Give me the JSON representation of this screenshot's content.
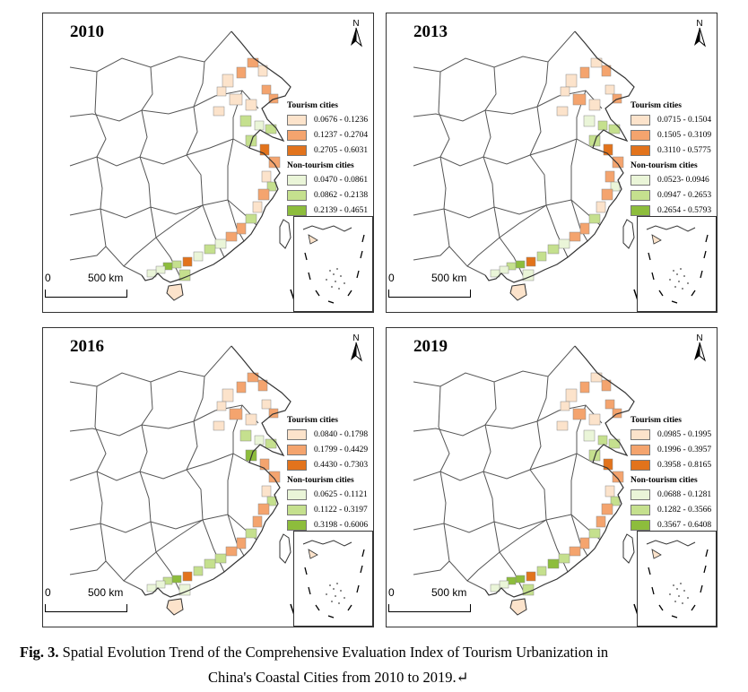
{
  "colors": {
    "tourism": [
      "#fce3cb",
      "#f4a46e",
      "#e2731c"
    ],
    "non_tourism": [
      "#eaf5d8",
      "#c5e08e",
      "#8dbd3c"
    ]
  },
  "panels": [
    {
      "year": "2010",
      "legend": {
        "tourism_title": "Tourism cities",
        "tourism_ranges": [
          "0.0676 - 0.1236",
          "0.1237 - 0.2704",
          "0.2705 - 0.6031"
        ],
        "non_tourism_title": "Non-tourism cities",
        "non_tourism_ranges": [
          "0.0470 - 0.0861",
          "0.0862 - 0.2138",
          "0.2139 - 0.4651"
        ]
      },
      "scale": {
        "zero": "0",
        "distance": "500 km"
      },
      "north": "N"
    },
    {
      "year": "2013",
      "legend": {
        "tourism_title": "Tourism cities",
        "tourism_ranges": [
          "0.0715 - 0.1504",
          "0.1505 - 0.3109",
          "0.3110 - 0.5775"
        ],
        "non_tourism_title": "Non-tourism cities",
        "non_tourism_ranges": [
          "0.0523- 0.0946",
          "0.0947 - 0.2653",
          "0.2654 - 0.5793"
        ]
      },
      "scale": {
        "zero": "0",
        "distance": "500 km"
      },
      "north": "N"
    },
    {
      "year": "2016",
      "legend": {
        "tourism_title": "Tourism cities",
        "tourism_ranges": [
          "0.0840 - 0.1798",
          "0.1799 - 0.4429",
          "0.4430 - 0.7303"
        ],
        "non_tourism_title": "Non-tourism cities",
        "non_tourism_ranges": [
          "0.0625 - 0.1121",
          "0.1122 - 0.3197",
          "0.3198 - 0.6006"
        ]
      },
      "scale": {
        "zero": "0",
        "distance": "500 km"
      },
      "north": "N"
    },
    {
      "year": "2019",
      "legend": {
        "tourism_title": "Tourism cities",
        "tourism_ranges": [
          "0.0985 - 0.1995",
          "0.1996 - 0.3957",
          "0.3958 - 0.8165"
        ],
        "non_tourism_title": "Non-tourism cities",
        "non_tourism_ranges": [
          "0.0688 - 0.1281",
          "0.1282 - 0.3566",
          "0.3567 - 0.6408"
        ]
      },
      "scale": {
        "zero": "0",
        "distance": "500 km"
      },
      "north": "N"
    }
  ],
  "caption": {
    "label": "Fig. 3.",
    "line1": " Spatial Evolution Trend of the Comprehensive Evaluation Index of Tourism Urbanization in",
    "line2": "China's Coastal Cities from 2010 to 2019.↵"
  }
}
